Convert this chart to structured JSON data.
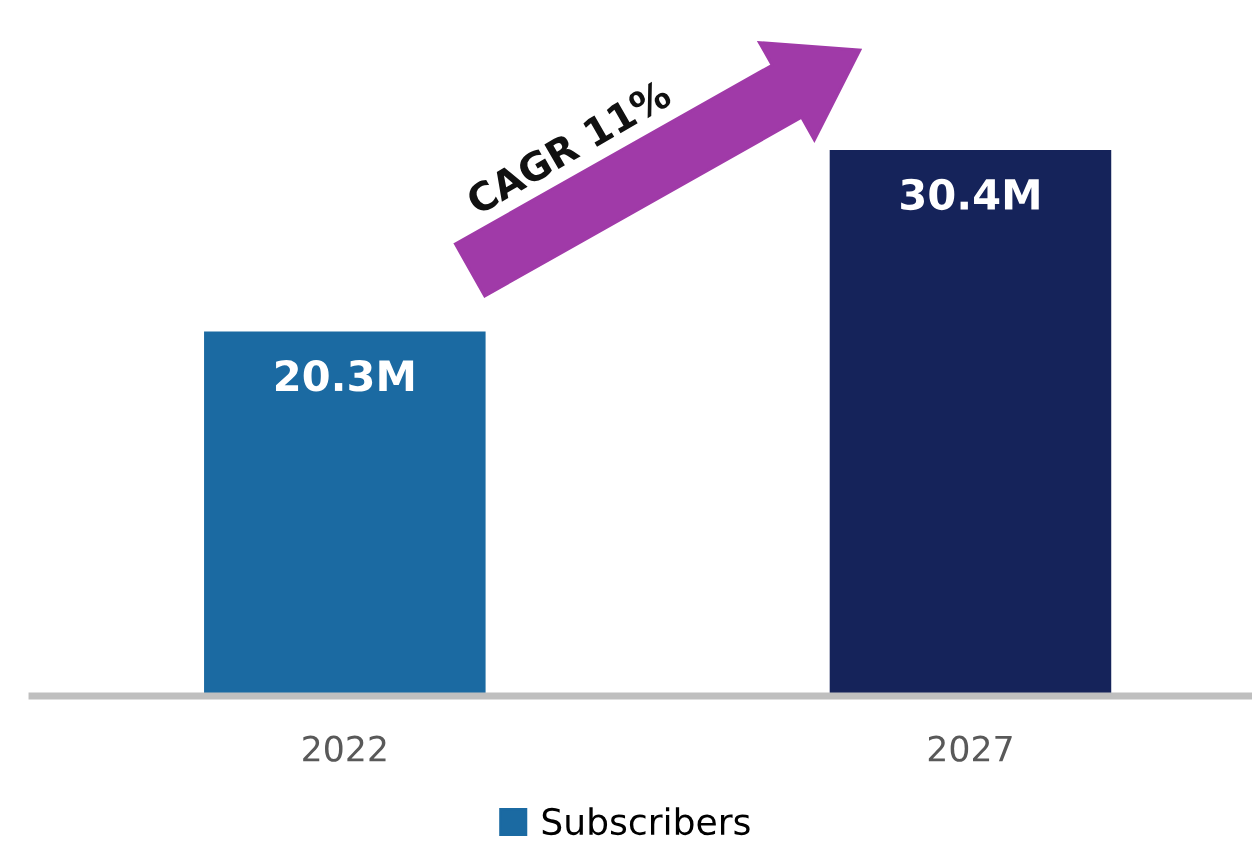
{
  "chart_data": {
    "type": "bar",
    "categories": [
      "2022",
      "2027"
    ],
    "series": [
      {
        "name": "Subscribers",
        "color": "#1b6aa2",
        "colors": [
          "#1b6aa2",
          "#15235a"
        ],
        "values": [
          20.3,
          30.4
        ],
        "value_labels": [
          "20.3M",
          "30.4M"
        ]
      }
    ],
    "annotations": [
      "CAGR 11%"
    ],
    "legend": "bottom",
    "grid": false
  }
}
